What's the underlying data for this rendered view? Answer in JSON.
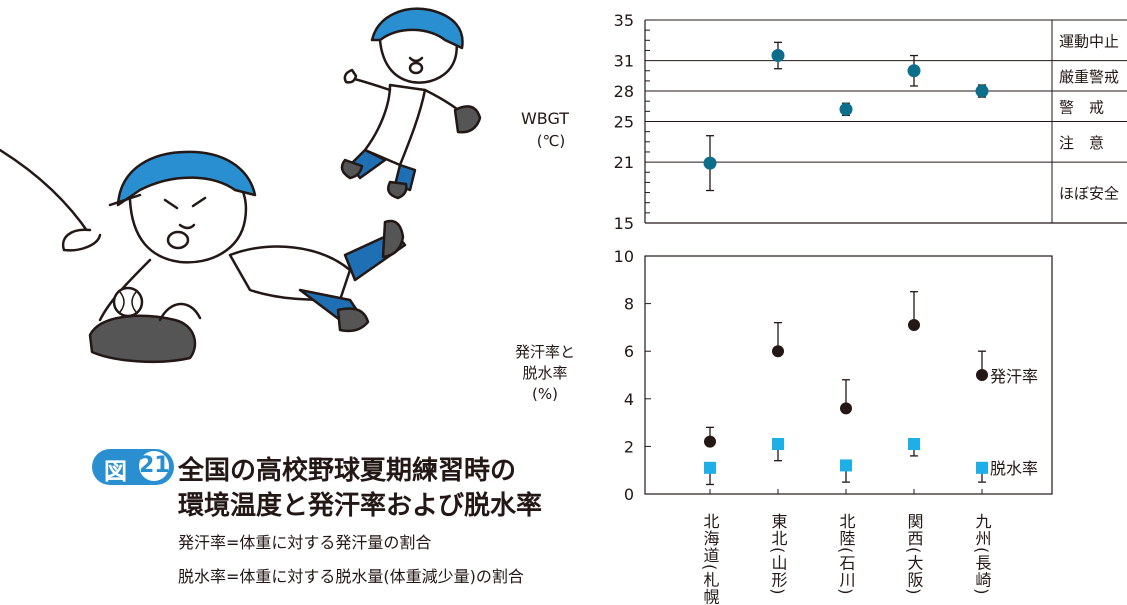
{
  "caption": {
    "figure_label": "図",
    "figure_number": "21",
    "title_line1": "全国の高校野球夏期練習時の",
    "title_line2": "環境温度と発汗率および脱水率",
    "note_line1": "発汗率=体重に対する発汗量の割合",
    "note_line2": "脱水率=体重に対する脱水量(体重減少量)の割合"
  },
  "chart_data": [
    {
      "type": "scatter",
      "ylabel": "WBGT",
      "ylabel_unit": "(℃)",
      "y_ticks": [
        15,
        21,
        25,
        28,
        31,
        35
      ],
      "ylim": [
        15,
        35
      ],
      "categories": [
        "北海道(札幌)",
        "東北(山形)",
        "北陸(石川)",
        "関西(大阪)",
        "九州(長崎)"
      ],
      "series": [
        {
          "values": [
            20.9,
            31.5,
            26.2,
            30.0,
            28.0
          ],
          "error_upper": [
            23.6,
            32.8,
            26.8,
            31.5,
            28.6
          ],
          "error_lower": [
            18.2,
            30.2,
            25.6,
            28.5,
            27.4
          ],
          "color": "#0d6e8c"
        }
      ],
      "zones": [
        {
          "label": "運動中止",
          "from": 31,
          "to": 35
        },
        {
          "label": "厳重警戒",
          "from": 28,
          "to": 31
        },
        {
          "label": "警　戒",
          "from": 25,
          "to": 28
        },
        {
          "label": "注　意",
          "from": 21,
          "to": 25
        },
        {
          "label": "ほぼ安全",
          "from": 15,
          "to": 21
        }
      ]
    },
    {
      "type": "scatter",
      "ylabel_lines": [
        "発汗率と",
        "脱水率",
        "(%)"
      ],
      "y_ticks": [
        0,
        2,
        4,
        6,
        8,
        10
      ],
      "ylim": [
        0,
        10
      ],
      "categories": [
        "北海道(札幌)",
        "東北(山形)",
        "北陸(石川)",
        "関西(大阪)",
        "九州(長崎)"
      ],
      "series": [
        {
          "name": "発汗率",
          "values": [
            2.2,
            6.0,
            3.6,
            7.1,
            5.0
          ],
          "error_upper": [
            2.8,
            7.2,
            4.8,
            8.5,
            6.0
          ],
          "color": "#231815"
        },
        {
          "name": "脱水率",
          "values": [
            1.1,
            2.1,
            1.2,
            2.1,
            1.1
          ],
          "error_lower": [
            0.4,
            1.4,
            0.5,
            1.6,
            0.5
          ],
          "color": "#1eaee8"
        }
      ]
    }
  ]
}
